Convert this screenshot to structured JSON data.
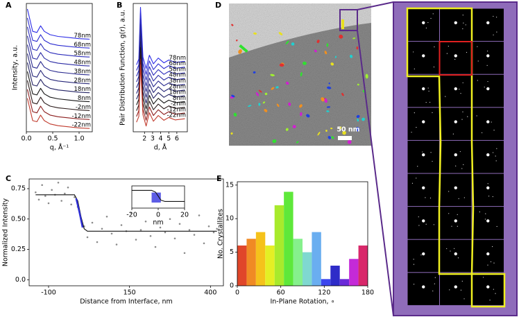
{
  "chart_data": [
    {
      "type": "line",
      "panel_label": "A",
      "x_label": "q, Å⁻¹",
      "y_label": "Intensity, a.u.",
      "x": [
        0.02,
        0.12,
        0.2,
        0.27,
        0.34,
        0.45,
        0.6,
        0.8,
        1.0,
        1.2
      ],
      "xlim": [
        0,
        1.25
      ],
      "xticks": [
        {
          "value": 0,
          "label": "0.0"
        },
        0.5,
        {
          "value": 1,
          "label": "1.0"
        }
      ],
      "ylim": [
        0,
        11.5
      ],
      "series": [
        {
          "name": "78nm",
          "color": "#2b2be6",
          "values": [
            11.0,
            9.0,
            8.9,
            9.5,
            9.0,
            8.7,
            8.55,
            8.45,
            8.35,
            8.3
          ]
        },
        {
          "name": "68nm",
          "color": "#2a2ad0",
          "values": [
            10.2,
            8.2,
            8.1,
            8.7,
            8.2,
            7.9,
            7.75,
            7.65,
            7.55,
            7.5
          ]
        },
        {
          "name": "58nm",
          "color": "#2a2aba",
          "values": [
            9.4,
            7.4,
            7.3,
            7.9,
            7.4,
            7.1,
            6.95,
            6.85,
            6.75,
            6.7
          ]
        },
        {
          "name": "48nm",
          "color": "#2a2aa4",
          "values": [
            8.6,
            6.6,
            6.5,
            7.1,
            6.6,
            6.3,
            6.15,
            6.05,
            5.95,
            5.9
          ]
        },
        {
          "name": "38nm",
          "color": "#28288e",
          "values": [
            7.8,
            5.8,
            5.7,
            6.3,
            5.8,
            5.5,
            5.35,
            5.25,
            5.15,
            5.1
          ]
        },
        {
          "name": "28nm",
          "color": "#252578",
          "values": [
            7.0,
            5.0,
            4.9,
            5.5,
            5.0,
            4.7,
            4.55,
            4.45,
            4.35,
            4.3
          ]
        },
        {
          "name": "18nm",
          "color": "#202062",
          "values": [
            6.2,
            4.2,
            4.1,
            4.7,
            4.2,
            3.9,
            3.75,
            3.65,
            3.55,
            3.5
          ]
        },
        {
          "name": "8nm",
          "color": "#151515",
          "values": [
            5.4,
            3.4,
            3.3,
            3.9,
            3.4,
            3.1,
            2.95,
            2.85,
            2.75,
            2.7
          ]
        },
        {
          "name": "-2nm",
          "color": "#2a1a1a",
          "values": [
            4.6,
            2.6,
            2.5,
            3.1,
            2.6,
            2.3,
            2.15,
            2.05,
            1.95,
            1.9
          ]
        },
        {
          "name": "-12nm",
          "color": "#8b1c1c",
          "values": [
            3.8,
            1.8,
            1.7,
            2.3,
            1.8,
            1.5,
            1.35,
            1.25,
            1.15,
            1.1
          ]
        },
        {
          "name": "-22nm",
          "color": "#c0392b",
          "values": [
            3.0,
            1.0,
            0.9,
            1.5,
            1.0,
            0.7,
            0.55,
            0.45,
            0.35,
            0.3
          ]
        }
      ]
    },
    {
      "type": "line",
      "panel_label": "B",
      "x_label": "d, Å",
      "y_label": "Pair Distribution Function, g(r), a.u.",
      "x": [
        1.0,
        1.3,
        1.5,
        1.8,
        2.2,
        2.6,
        3.1,
        3.7,
        4.4,
        5.0,
        5.8,
        7.0
      ],
      "xlim": [
        0.6,
        7.3
      ],
      "xticks": [
        2,
        3,
        4,
        5,
        6
      ],
      "ylim": [
        -0.5,
        6.2
      ],
      "series": [
        {
          "name": "78nm",
          "color": "#2b2be6",
          "values": [
            3.0,
            3.3,
            6.0,
            3.4,
            2.8,
            3.5,
            3.05,
            3.35,
            3.1,
            3.25,
            3.12,
            3.18
          ]
        },
        {
          "name": "68nm",
          "color": "#2a2ad0",
          "values": [
            2.7,
            3.0,
            5.7,
            3.1,
            2.5,
            3.2,
            2.75,
            3.05,
            2.8,
            2.95,
            2.82,
            2.88
          ]
        },
        {
          "name": "58nm",
          "color": "#2a2aba",
          "values": [
            2.4,
            2.7,
            5.4,
            2.8,
            2.2,
            2.9,
            2.45,
            2.75,
            2.5,
            2.65,
            2.52,
            2.58
          ]
        },
        {
          "name": "48nm",
          "color": "#2a2aa4",
          "values": [
            2.1,
            2.4,
            5.1,
            2.5,
            1.9,
            2.6,
            2.15,
            2.45,
            2.2,
            2.35,
            2.22,
            2.28
          ]
        },
        {
          "name": "38nm",
          "color": "#28288e",
          "values": [
            1.8,
            2.1,
            4.8,
            2.2,
            1.6,
            2.3,
            1.85,
            2.15,
            1.9,
            2.05,
            1.92,
            1.98
          ]
        },
        {
          "name": "28nm",
          "color": "#252578",
          "values": [
            1.5,
            1.8,
            4.5,
            1.9,
            1.3,
            2.0,
            1.55,
            1.85,
            1.6,
            1.75,
            1.62,
            1.68
          ]
        },
        {
          "name": "18nm",
          "color": "#202062",
          "values": [
            1.2,
            1.5,
            4.2,
            1.6,
            1.0,
            1.7,
            1.25,
            1.55,
            1.3,
            1.45,
            1.32,
            1.38
          ]
        },
        {
          "name": "8nm",
          "color": "#151515",
          "values": [
            0.9,
            1.2,
            3.9,
            1.3,
            0.7,
            1.4,
            0.95,
            1.25,
            1.0,
            1.15,
            1.02,
            1.08
          ]
        },
        {
          "name": "-2nm",
          "color": "#2a1a1a",
          "values": [
            0.6,
            0.9,
            3.6,
            1.0,
            0.4,
            1.1,
            0.65,
            0.95,
            0.7,
            0.85,
            0.72,
            0.78
          ]
        },
        {
          "name": "-12nm",
          "color": "#8b1c1c",
          "values": [
            0.3,
            0.6,
            3.3,
            0.7,
            0.1,
            0.8,
            0.35,
            0.65,
            0.4,
            0.55,
            0.42,
            0.48
          ]
        },
        {
          "name": "-22nm",
          "color": "#c0392b",
          "values": [
            0,
            0.3,
            3.0,
            0.4,
            -0.2,
            0.5,
            0.05,
            0.35,
            0.1,
            0.25,
            0.12,
            0.18
          ]
        }
      ]
    },
    {
      "type": "scatter",
      "panel_label": "C",
      "x_label": "Distance from Interface, nm",
      "y_label": "Normalized Intensity",
      "color": "#8a8a8a",
      "x": [
        -140,
        -130,
        -120,
        -110,
        -100,
        -90,
        -80,
        -70,
        -60,
        -50,
        -40,
        -30,
        -20,
        -10,
        0,
        10,
        20,
        35,
        50,
        65,
        80,
        95,
        110,
        125,
        140,
        155,
        170,
        185,
        200,
        215,
        230,
        245,
        260,
        275,
        290,
        305,
        320,
        335,
        350,
        365,
        380,
        395,
        410,
        420
      ],
      "y": [
        0.72,
        0.66,
        0.78,
        0.69,
        0.63,
        0.74,
        0.7,
        0.8,
        0.65,
        0.71,
        0.76,
        0.62,
        0.68,
        0.6,
        0.5,
        0.44,
        0.35,
        0.47,
        0.31,
        0.42,
        0.52,
        0.38,
        0.29,
        0.45,
        0.4,
        0.55,
        0.33,
        0.41,
        0.48,
        0.36,
        0.27,
        0.43,
        0.39,
        0.5,
        0.34,
        0.46,
        0.22,
        0.41,
        0.37,
        0.53,
        0.3,
        0.44,
        0.39,
        0.42
      ],
      "lines": [
        {
          "color": "#111111",
          "x": [
            -140,
            -20,
            -10,
            0,
            10,
            20,
            420
          ],
          "y": [
            0.7,
            0.7,
            0.65,
            0.52,
            0.42,
            0.4,
            0.4
          ]
        },
        {
          "color": "#3030d8",
          "x": [
            -15,
            -5,
            5
          ],
          "y": [
            0.67,
            0.56,
            0.43
          ]
        }
      ],
      "xlim": [
        -160,
        440
      ],
      "xticks": [
        -100,
        150,
        400
      ],
      "ylim": [
        -0.05,
        0.83
      ],
      "yticks": [
        {
          "value": 0,
          "label": "0.0"
        },
        0.25,
        {
          "value": 0.5,
          "label": "0.50"
        },
        0.75
      ]
    },
    {
      "type": "line",
      "x_label": "nm",
      "x": [
        -20,
        -5,
        -2,
        0,
        2,
        5,
        20
      ],
      "xlim": [
        -20,
        20
      ],
      "xticks": [
        -20,
        0,
        20
      ],
      "ylim": [
        0.3,
        0.8
      ],
      "highlight_span": [
        -5,
        2
      ],
      "highlight_color": "#4040e0",
      "series": [
        {
          "color": "#111111",
          "values": [
            0.7,
            0.7,
            0.66,
            0.57,
            0.48,
            0.45,
            0.45
          ]
        }
      ]
    },
    {
      "type": "image",
      "panel_label": "D",
      "scale_label": "50 nm"
    },
    {
      "type": "histogram",
      "panel_label": "E",
      "x_label": "In-Plane Rotation, ∘",
      "y_label": "No. Crystallites",
      "bins": [
        0,
        12.86,
        25.71,
        38.57,
        51.43,
        64.29,
        77.14,
        90,
        102.86,
        115.71,
        128.57,
        141.43,
        154.29,
        167.14,
        180
      ],
      "values": [
        6,
        7,
        8,
        6,
        12,
        14,
        7,
        5,
        8,
        1,
        3,
        1,
        4,
        6
      ],
      "colors": [
        "#e0462a",
        "#f08a24",
        "#f5c21b",
        "#e4ef24",
        "#a8ea2c",
        "#5ee83a",
        "#86f08c",
        "#7fd8d0",
        "#6aaef0",
        "#3c46ee",
        "#2e2cc8",
        "#6a2ad8",
        "#c42ad8",
        "#d8286a"
      ],
      "xlim": [
        0,
        180
      ],
      "xticks": [
        0,
        60,
        120,
        180
      ],
      "ylim": [
        0,
        15.5
      ],
      "yticks": [
        0,
        5,
        10,
        15
      ]
    }
  ]
}
